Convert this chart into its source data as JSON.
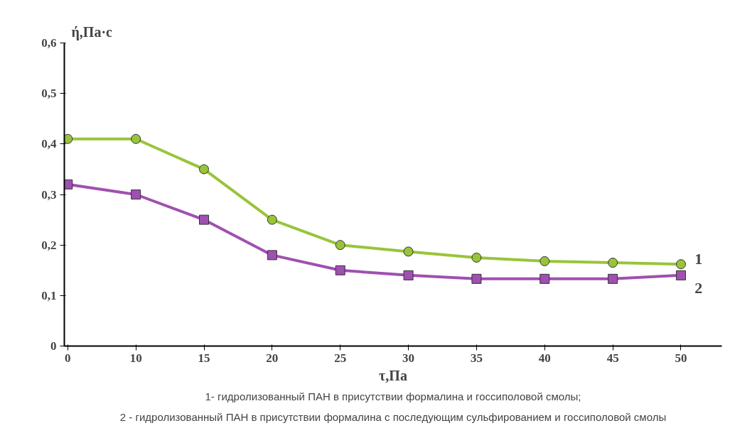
{
  "chart_data": {
    "type": "line",
    "xlabel": "τ,Па",
    "ylabel": "ή,Па·с",
    "categories": [
      "0",
      "10",
      "15",
      "20",
      "25",
      "30",
      "35",
      "40",
      "45",
      "50"
    ],
    "series": [
      {
        "name": "1",
        "color": "#99c43a",
        "marker": "circle",
        "values": [
          0.41,
          0.41,
          0.35,
          0.25,
          0.2,
          0.187,
          0.175,
          0.168,
          0.165,
          0.162
        ]
      },
      {
        "name": "2",
        "color": "#a050b0",
        "marker": "square",
        "values": [
          0.32,
          0.3,
          0.25,
          0.18,
          0.15,
          0.14,
          0.133,
          0.133,
          0.133,
          0.14
        ]
      }
    ],
    "ylim": [
      0,
      0.6
    ],
    "yticks": [
      0,
      {
        "value": 0.1,
        "label": "0,1"
      },
      {
        "value": 0.2,
        "label": "0,2"
      },
      {
        "value": 0.3,
        "label": "0,3"
      },
      {
        "value": 0.4,
        "label": "0,4"
      },
      {
        "value": 0.5,
        "label": "0,5"
      },
      {
        "value": 0.6,
        "label": "0,6"
      }
    ],
    "grid": false,
    "annotations": [
      "1- гидролизованный ПАН в присутствии формалина и госсиполовой смолы;",
      "2 - гидролизованный ПАН в присутствии формалина с последующим сульфированием и госсиполовой смолы"
    ]
  }
}
